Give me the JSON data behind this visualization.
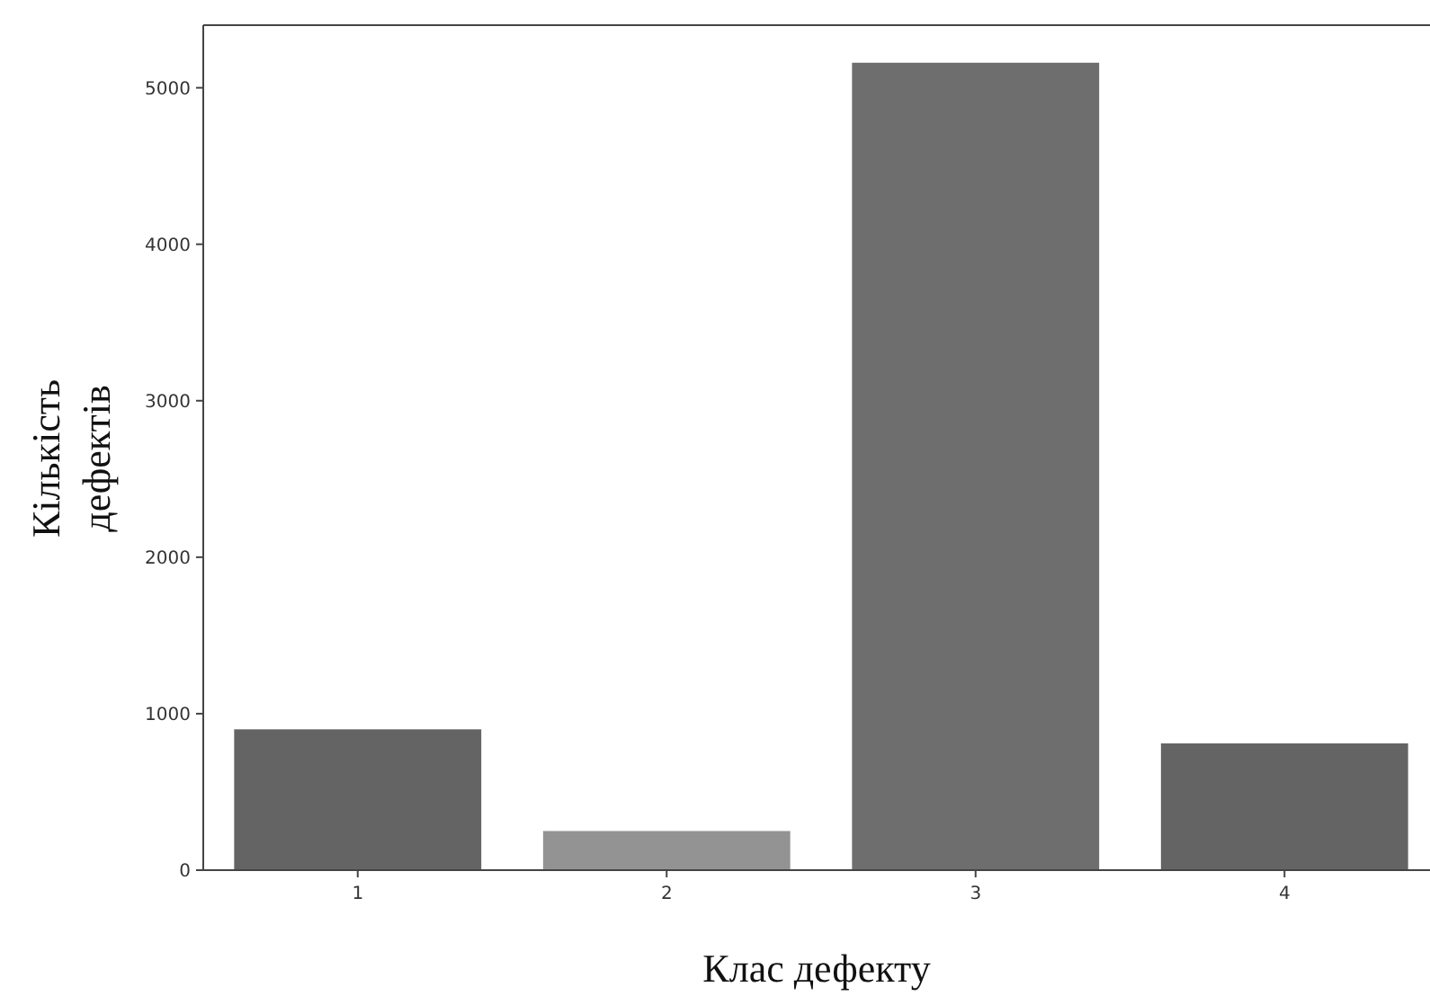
{
  "chart_data": {
    "type": "bar",
    "xlabel": "Клас дефекту",
    "ylabel": "Кількість\nдефектів",
    "categories": [
      "1",
      "2",
      "3",
      "4"
    ],
    "values": [
      900,
      250,
      5160,
      810
    ],
    "colors": [
      "#646464",
      "#939393",
      "#6e6e6e",
      "#646464"
    ],
    "ylim": [
      0,
      5400
    ],
    "yticks": [
      0,
      1000,
      2000,
      3000,
      4000,
      5000
    ]
  }
}
